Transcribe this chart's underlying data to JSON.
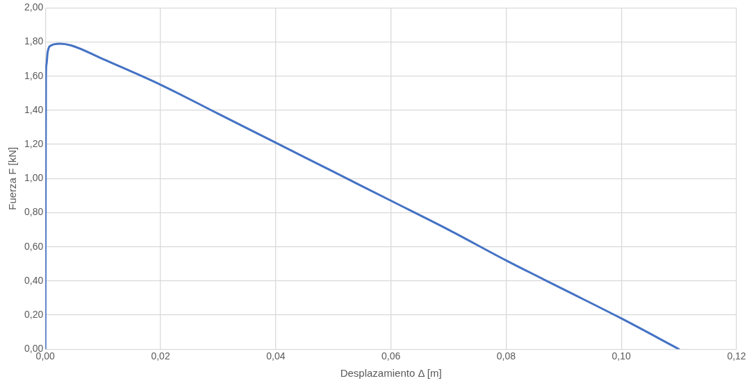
{
  "chart_data": {
    "type": "line",
    "xlabel": "Desplazamiento Δ [m]",
    "ylabel": "Fuerza F [kN]",
    "series": [
      {
        "color": "#4472c4",
        "x": [
          0,
          0.0001,
          0.0002,
          0.0004,
          0.001,
          0.0025,
          0.0045,
          0.01,
          0.02,
          0.03,
          0.04,
          0.05,
          0.06,
          0.07,
          0.08,
          0.09,
          0.1,
          0.11
        ],
        "values": [
          0,
          1.6,
          1.67,
          1.74,
          1.78,
          1.79,
          1.78,
          1.7,
          1.55,
          1.38,
          1.21,
          1.04,
          0.87,
          0.7,
          0.52,
          0.35,
          0.18,
          0
        ]
      }
    ],
    "xlim": [
      0,
      0.12
    ],
    "xticks": [
      {
        "value": 0,
        "label": "0,00"
      },
      {
        "value": 0.02,
        "label": "0,02"
      },
      {
        "value": 0.04,
        "label": "0,04"
      },
      {
        "value": 0.06,
        "label": "0,06"
      },
      {
        "value": 0.08,
        "label": "0,08"
      },
      {
        "value": 0.1,
        "label": "0,10"
      },
      {
        "value": 0.12,
        "label": "0,12"
      }
    ],
    "ylim": [
      0,
      2
    ],
    "yticks": [
      {
        "value": 0,
        "label": "0,00"
      },
      {
        "value": 0.2,
        "label": "0,20"
      },
      {
        "value": 0.4,
        "label": "0,40"
      },
      {
        "value": 0.6,
        "label": "0,60"
      },
      {
        "value": 0.8,
        "label": "0,80"
      },
      {
        "value": 1,
        "label": "1,00"
      },
      {
        "value": 1.2,
        "label": "1,20"
      },
      {
        "value": 1.4,
        "label": "1,40"
      },
      {
        "value": 1.6,
        "label": "1,60"
      },
      {
        "value": 1.8,
        "label": "1,80"
      },
      {
        "value": 2,
        "label": "2,00"
      }
    ],
    "grid": true,
    "legend": false,
    "marker": "none",
    "line_style": "solid"
  }
}
